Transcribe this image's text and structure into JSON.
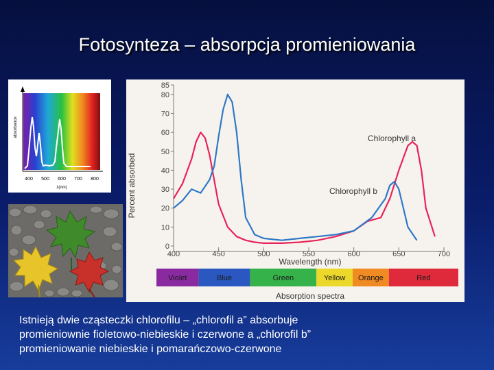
{
  "slide": {
    "title": "Fotosynteza – absorpcja promieniowania",
    "caption_lines": [
      "Istnieją dwie cząsteczki chlorofilu – „chlorofil a” absorbuje",
      "promieniownie fioletowo-niebieskie i czerwone a „chlorofil b”",
      "promieniowanie niebieskie i pomarańczowo-czerwone"
    ]
  },
  "small_plot": {
    "ylabel": "absorbance",
    "xticks": [
      "400",
      "500",
      "600",
      "700",
      "800"
    ],
    "xlabel": "λ(nm)"
  },
  "chart_data": {
    "type": "line",
    "title": "Absorption spectra",
    "xlabel": "Wavelength (nm)",
    "ylabel": "Percent absorbed",
    "xlim": [
      400,
      700
    ],
    "ylim": [
      0,
      85
    ],
    "xticks": [
      400,
      450,
      500,
      550,
      600,
      650,
      700
    ],
    "yticks": [
      0,
      10,
      20,
      30,
      40,
      50,
      60,
      70,
      80,
      85
    ],
    "series": [
      {
        "name": "Chlorophyll a",
        "color": "#e8235a",
        "x": [
          400,
          410,
          420,
          425,
          430,
          435,
          440,
          450,
          460,
          470,
          480,
          490,
          500,
          520,
          540,
          560,
          580,
          600,
          615,
          630,
          640,
          650,
          660,
          665,
          670,
          675,
          680,
          690
        ],
        "y": [
          25,
          33,
          46,
          55,
          60,
          57,
          48,
          22,
          10,
          5,
          3,
          2,
          1.5,
          1.5,
          2,
          3,
          5,
          8,
          13,
          15,
          25,
          40,
          53,
          55,
          53,
          40,
          20,
          5
        ]
      },
      {
        "name": "Chlorophyll b",
        "color": "#2e78c6",
        "x": [
          400,
          410,
          420,
          430,
          440,
          445,
          450,
          455,
          460,
          465,
          470,
          475,
          480,
          490,
          500,
          520,
          540,
          560,
          580,
          600,
          620,
          635,
          640,
          645,
          650,
          655,
          660,
          670
        ],
        "y": [
          20,
          24,
          30,
          28,
          35,
          42,
          58,
          72,
          80,
          76,
          60,
          35,
          15,
          6,
          4,
          3,
          4,
          5,
          6,
          8,
          15,
          25,
          32,
          34,
          30,
          20,
          10,
          3
        ]
      }
    ],
    "spectrum_bands": [
      {
        "label": "Violet",
        "color": "#8a2aa0"
      },
      {
        "label": "Blue",
        "color": "#2b58c0"
      },
      {
        "label": "Green",
        "color": "#36b24a"
      },
      {
        "label": "Yellow",
        "color": "#ecd82a"
      },
      {
        "label": "Orange",
        "color": "#f08a22"
      },
      {
        "label": "Red",
        "color": "#de2a3a"
      }
    ]
  }
}
